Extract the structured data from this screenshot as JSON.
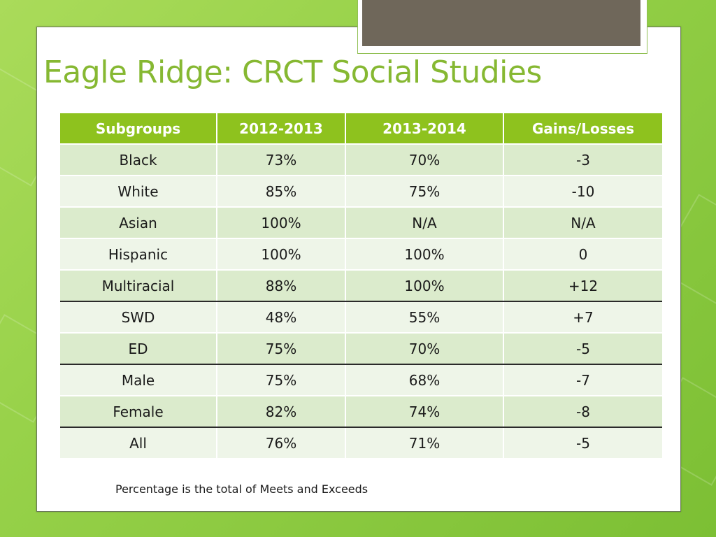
{
  "slide": {
    "title": "Eagle Ridge: CRCT Social Studies",
    "footnote": "Percentage is the total of Meets and Exceeds"
  },
  "colors": {
    "background_green": "#98d24a",
    "title_green": "#86b832",
    "header_green": "#8ec21e",
    "row_band_dark": "#dbebcc",
    "row_band_light": "#eef5e8",
    "tab_brown": "#6f675a"
  },
  "table": {
    "headers": [
      "Subgroups",
      "2012-2013",
      "2013-2014",
      "Gains/Losses"
    ],
    "rows": [
      [
        "Black",
        "73%",
        "70%",
        "-3"
      ],
      [
        "White",
        "85%",
        "75%",
        "-10"
      ],
      [
        "Asian",
        "100%",
        "N/A",
        "N/A"
      ],
      [
        "Hispanic",
        "100%",
        "100%",
        "0"
      ],
      [
        "Multiracial",
        "88%",
        "100%",
        "+12"
      ],
      [
        "SWD",
        "48%",
        "55%",
        "+7"
      ],
      [
        "ED",
        "75%",
        "70%",
        "-5"
      ],
      [
        "Male",
        "75%",
        "68%",
        "-7"
      ],
      [
        "Female",
        "82%",
        "74%",
        "-8"
      ],
      [
        "All",
        "76%",
        "71%",
        "-5"
      ]
    ]
  }
}
